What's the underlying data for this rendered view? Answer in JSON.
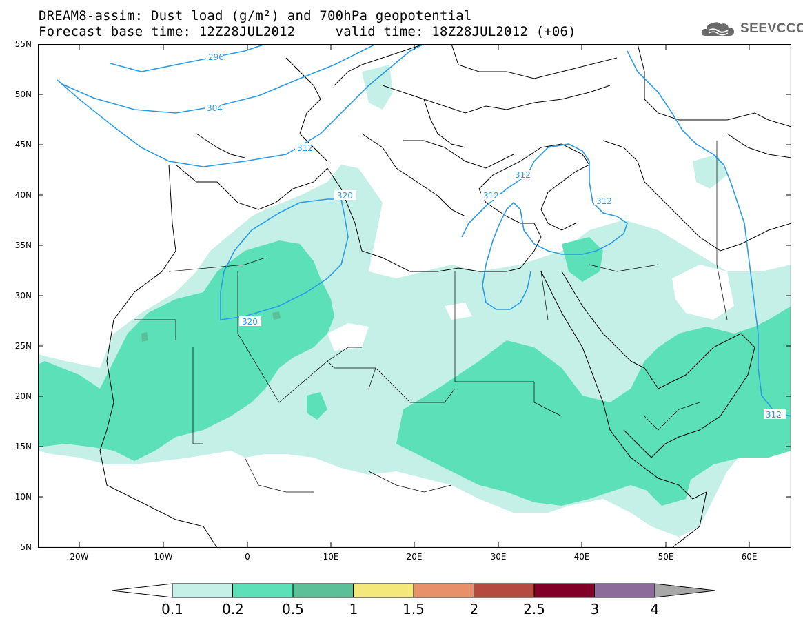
{
  "title": {
    "line1": "DREAM8-assim: Dust load (g/m²) and 700hPa geopotential",
    "line2": "Forecast base time: 12Z28JUL2012     valid time: 18Z28JUL2012 (+06)"
  },
  "logo": {
    "text": "SEEVCCC",
    "icon": "cloud-icon"
  },
  "map": {
    "lat_range": [
      5,
      55
    ],
    "lon_range": [
      -25,
      65
    ],
    "lat_labels": [
      "55N",
      "50N",
      "45N",
      "40N",
      "35N",
      "30N",
      "25N",
      "20N",
      "15N",
      "10N",
      "5N"
    ],
    "lon_labels": [
      "20W",
      "10W",
      "0",
      "10E",
      "20E",
      "30E",
      "40E",
      "50E",
      "60E"
    ],
    "contour_labels": [
      "296",
      "304",
      "312",
      "320",
      "320",
      "312",
      "312",
      "312",
      "312"
    ]
  },
  "colorbar": {
    "labels": [
      "0.1",
      "0.2",
      "0.5",
      "1",
      "1.5",
      "2",
      "2.5",
      "3",
      "4"
    ],
    "colors": [
      "#c4f0e8",
      "#5ce0b8",
      "#5bbf98",
      "#f5e87a",
      "#e8906a",
      "#b44a40",
      "#800028",
      "#8c6a9a"
    ],
    "under_color": "#ffffff",
    "over_color": "#a8a8a8"
  },
  "colors": {
    "contour": "#2b9be6",
    "dust_light": "#c4f0e8",
    "dust_medium": "#5ce0b8",
    "dust_dark": "#5bbf98"
  }
}
